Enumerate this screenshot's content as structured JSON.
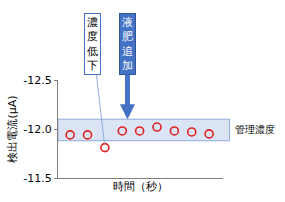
{
  "chart_data": {
    "type": "scatter",
    "x_label": "時間（秒）",
    "y_label": "検出電流(μA)",
    "x": [
      1,
      2,
      3,
      4,
      5,
      6,
      7,
      8,
      9
    ],
    "values": [
      -11.94,
      -11.94,
      -11.81,
      -11.98,
      -11.98,
      -12.02,
      -11.98,
      -11.97,
      -11.95
    ],
    "color": "#e02020",
    "marker": "open_circle",
    "xlim": [
      0.3,
      9.8
    ],
    "xticks": [],
    "ylim": [
      -11.5,
      -12.5
    ],
    "yticks": [
      -12.5,
      {
        "value": -12,
        "label": "-12.0"
      },
      -11.5
    ],
    "tick_labels": "y",
    "grid": false,
    "control_band": {
      "label": "管理濃度",
      "range": [
        -12.1,
        -11.88
      ]
    },
    "annotations": [
      {
        "text": "濃度低下",
        "x": 3,
        "y": -11.81
      },
      {
        "text": "液肥追加",
        "x": 4.3,
        "y": -12.1
      }
    ]
  }
}
